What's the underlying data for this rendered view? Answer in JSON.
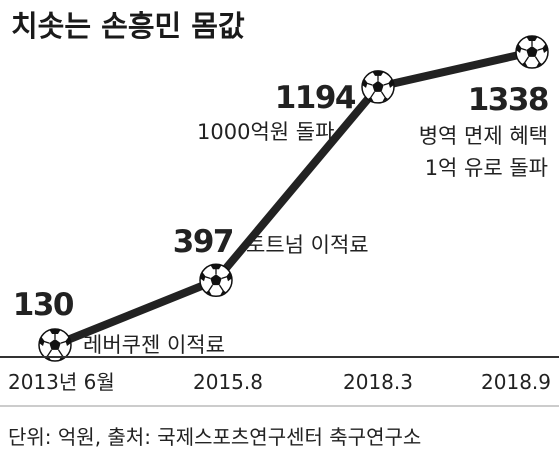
{
  "chart_data": {
    "type": "line",
    "title": "치솟는 손흥민 몸값",
    "categories": [
      "2013년 6월",
      "2015.8",
      "2018.3",
      "2018.9"
    ],
    "series": [
      {
        "values": [
          130,
          397,
          1194,
          1338
        ]
      }
    ],
    "value_labels": [
      "130",
      "397",
      "1194",
      "1338"
    ],
    "annotations": [
      [
        "레버쿠젠 이적료"
      ],
      [
        "토트넘 이적료"
      ],
      [
        "1000억원 돌파"
      ],
      [
        "병역 면제 혜택",
        "1억 유로 돌파"
      ]
    ],
    "ylim": [
      0,
      1400
    ],
    "grid": false,
    "legend": "none",
    "marker_icon": "soccer-ball-icon",
    "source": "단위: 억원, 출처: 국제스포츠연구센터 축구연구소"
  },
  "colors": {
    "line": "#222222",
    "text": "#222222",
    "axis": "#333333"
  }
}
